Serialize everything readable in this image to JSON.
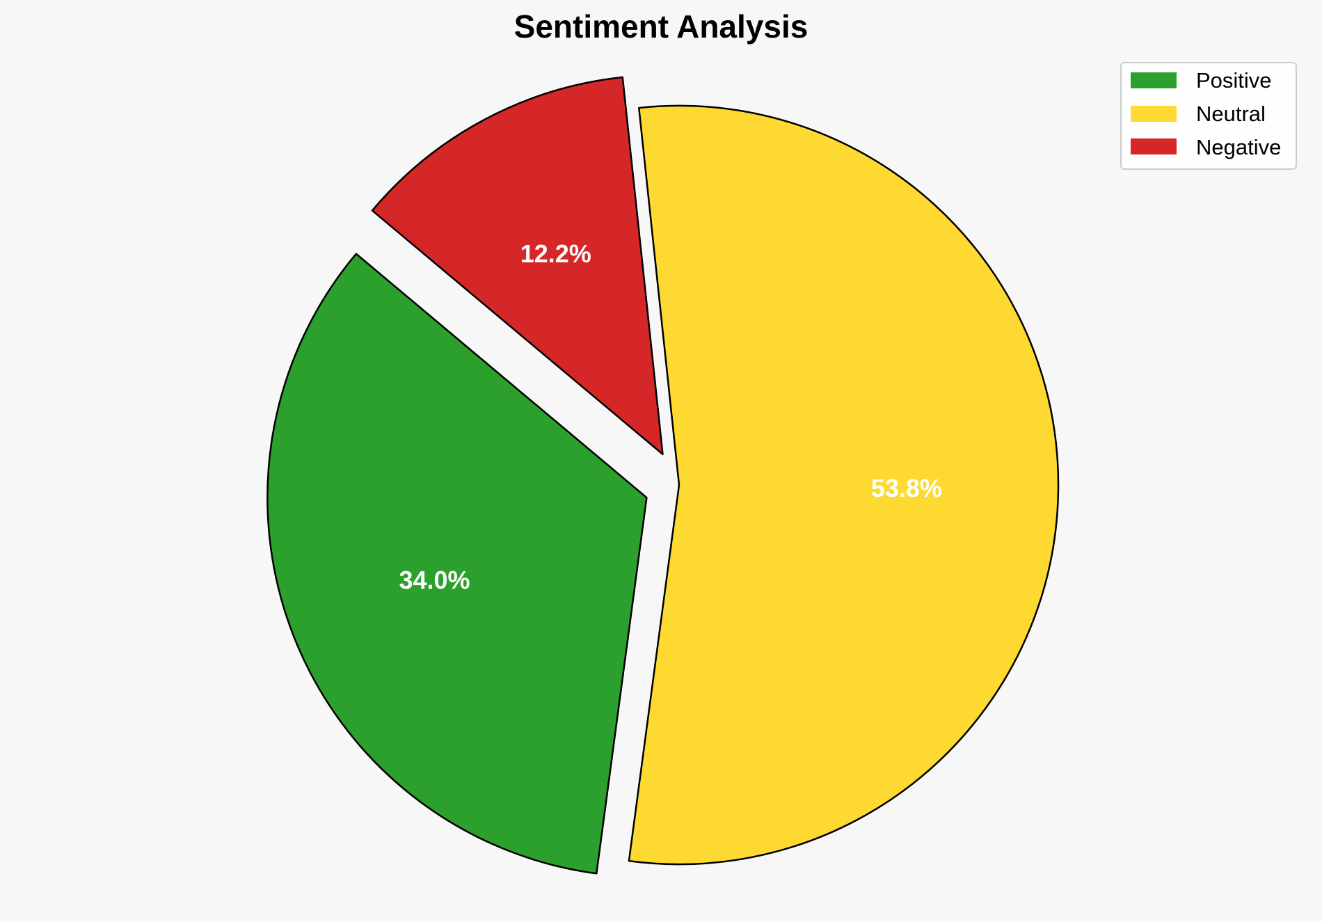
{
  "chart_data": {
    "type": "pie",
    "title": "Sentiment Analysis",
    "categories": [
      "Positive",
      "Neutral",
      "Negative"
    ],
    "values": [
      34.0,
      53.8,
      12.2
    ],
    "labels": [
      "34.0%",
      "53.8%",
      "12.2%"
    ],
    "colors": [
      "#2ca02c",
      "#fdd931",
      "#d62728"
    ],
    "exploded": [
      true,
      false,
      true
    ],
    "start_angle_deg": 140,
    "direction": "counterclockwise",
    "edge_color": "#000000",
    "label_color": "#ffffff",
    "legend": {
      "placement": "top-right",
      "entries": [
        "Positive",
        "Neutral",
        "Negative"
      ]
    }
  }
}
